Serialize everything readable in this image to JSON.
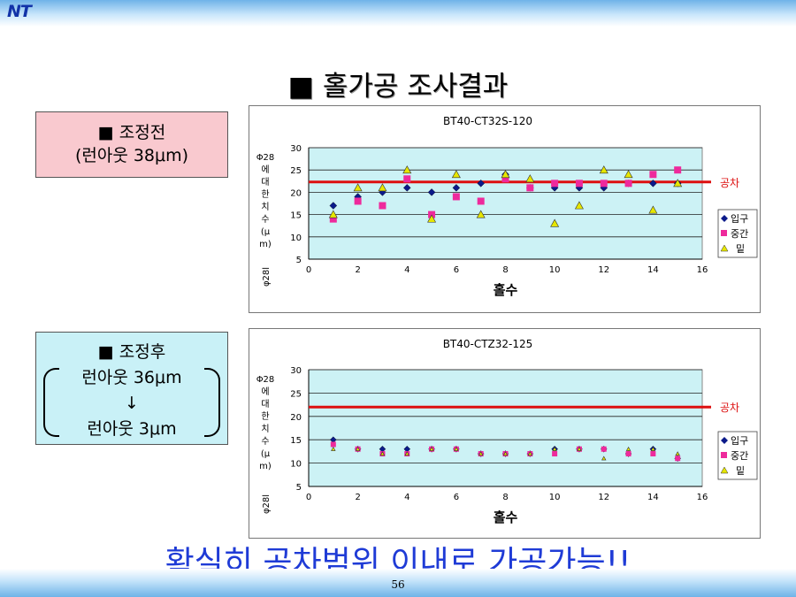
{
  "header": {
    "logo": "NT"
  },
  "title": "■ 홀가공 조사결과",
  "box_before": {
    "line1": "■ 조정전",
    "line2": "(런아웃 38μm)"
  },
  "box_after": {
    "line1": "■ 조정후",
    "line2": "런아웃 36μm",
    "arrow": "↓",
    "line3": "런아웃 3μm"
  },
  "bottom_text": "확실히 공차범위 이내로 가공가능!!",
  "page_number": "56",
  "colors": {
    "inlet": "#0b1a8a",
    "middle": "#ee2a9c",
    "bottom": "#e6e600",
    "tolerance": "#dd1010",
    "plot_bg": "#ccf2f5"
  },
  "chart_data": [
    {
      "type": "scatter",
      "title": "BT40-CT32S-120",
      "xlabel": "홀수",
      "ylabel_top": "Φ28",
      "ylabel_chars": [
        "에",
        "대",
        "한",
        "치",
        "수",
        "(μ",
        "m)"
      ],
      "ylabel_bottom": "φ28l",
      "xlim": [
        0,
        16
      ],
      "ylim": [
        5,
        30
      ],
      "xticks": [
        0,
        2,
        4,
        6,
        8,
        10,
        12,
        14,
        16
      ],
      "yticks": [
        5,
        10,
        15,
        20,
        25,
        30
      ],
      "tolerance": {
        "value": 22.3,
        "label": "공차"
      },
      "legend": [
        "입구",
        "중간",
        "밑"
      ],
      "series": [
        {
          "name": "입구",
          "marker": "diamond",
          "x": [
            1,
            2,
            3,
            4,
            5,
            6,
            7,
            8,
            9,
            10,
            11,
            12,
            13,
            14,
            15
          ],
          "y": [
            17,
            19,
            20,
            21,
            20,
            21,
            22,
            24,
            21,
            21,
            21,
            21,
            22,
            22,
            22
          ]
        },
        {
          "name": "중간",
          "marker": "square",
          "x": [
            1,
            2,
            3,
            4,
            5,
            6,
            7,
            8,
            9,
            10,
            11,
            12,
            13,
            14,
            15
          ],
          "y": [
            14,
            18,
            17,
            23,
            15,
            19,
            18,
            23,
            21,
            22,
            22,
            22,
            22,
            24,
            25
          ]
        },
        {
          "name": "밑",
          "marker": "triangle",
          "x": [
            1,
            2,
            3,
            4,
            5,
            6,
            7,
            8,
            9,
            10,
            11,
            12,
            13,
            14,
            15
          ],
          "y": [
            15,
            21,
            21,
            25,
            14,
            24,
            15,
            24,
            23,
            13,
            17,
            25,
            24,
            16,
            22
          ]
        }
      ]
    },
    {
      "type": "scatter",
      "title": "BT40-CTZ32-125",
      "xlabel": "홀수",
      "ylabel_top": "Φ28",
      "ylabel_chars": [
        "에",
        "대",
        "한",
        "치",
        "수",
        "(μ",
        "m)"
      ],
      "ylabel_bottom": "φ28l",
      "xlim": [
        0,
        16
      ],
      "ylim": [
        5,
        30
      ],
      "xticks": [
        0,
        2,
        4,
        6,
        8,
        10,
        12,
        14,
        16
      ],
      "yticks": [
        5,
        10,
        15,
        20,
        25,
        30
      ],
      "tolerance": {
        "value": 22,
        "label": "공차"
      },
      "legend": [
        "입구",
        "중간",
        "밑"
      ],
      "series": [
        {
          "name": "입구",
          "marker": "diamond",
          "x": [
            1,
            2,
            3,
            4,
            5,
            6,
            7,
            8,
            9,
            10,
            11,
            12,
            13,
            14,
            15
          ],
          "y": [
            15,
            13,
            13,
            13,
            13,
            13,
            12,
            12,
            12,
            13,
            13,
            13,
            12,
            13,
            11
          ]
        },
        {
          "name": "중간",
          "marker": "square",
          "x": [
            1,
            2,
            3,
            4,
            5,
            6,
            7,
            8,
            9,
            10,
            11,
            12,
            13,
            14,
            15
          ],
          "y": [
            14,
            13,
            12,
            12,
            13,
            13,
            12,
            12,
            12,
            12,
            13,
            13,
            12,
            12,
            11
          ]
        },
        {
          "name": "밑",
          "marker": "triangle",
          "x": [
            1,
            2,
            3,
            4,
            5,
            6,
            7,
            8,
            9,
            10,
            11,
            12,
            13,
            14,
            15
          ],
          "y": [
            13,
            13,
            12,
            12,
            13,
            13,
            12,
            12,
            12,
            13,
            13,
            11,
            13,
            13,
            12
          ]
        }
      ]
    }
  ]
}
